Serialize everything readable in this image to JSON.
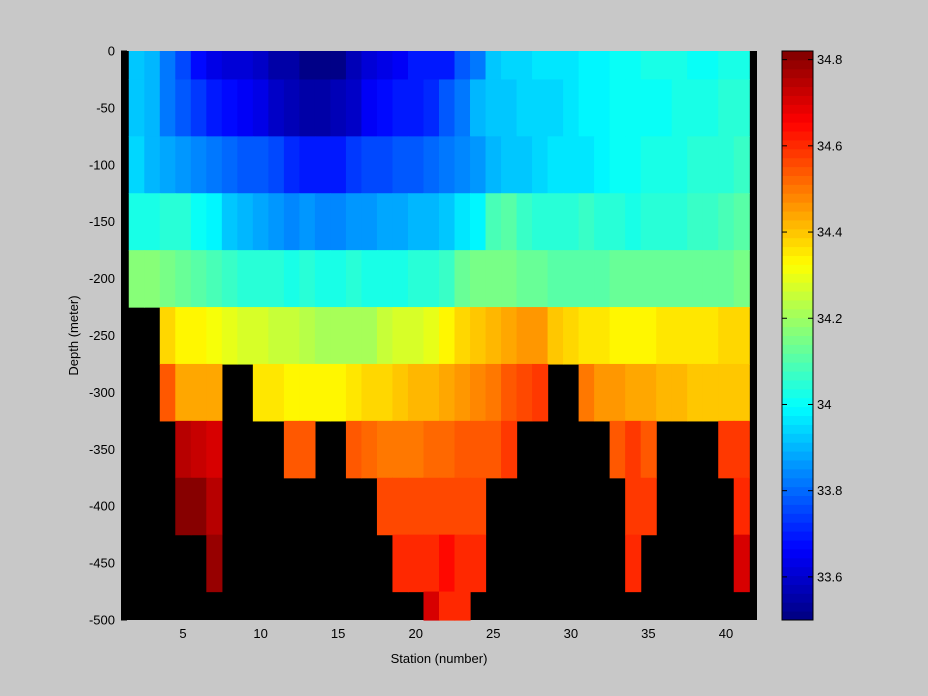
{
  "chart_data": {
    "type": "heatmap",
    "title": "",
    "xlabel": "Station (number)",
    "ylabel": "Depth (meter)",
    "xlim": [
      1,
      42
    ],
    "ylim": [
      -500,
      0
    ],
    "x_ticks": [
      5,
      10,
      15,
      20,
      25,
      30,
      35,
      40
    ],
    "y_ticks": [
      0,
      -50,
      -100,
      -150,
      -200,
      -250,
      -300,
      -350,
      -400,
      -450,
      -500
    ],
    "colorbar": {
      "colormap": "jet",
      "range": [
        33.5,
        34.82
      ],
      "ticks": [
        34.8,
        34.6,
        34.4,
        34.2,
        34,
        33.8,
        33.6
      ]
    },
    "background_color": "#000000",
    "station_range": [
      2,
      41
    ],
    "depth_bin_centers": [
      -12.5,
      -50,
      -100,
      -150,
      -200,
      -250,
      -300,
      -350,
      -400,
      -450,
      -500
    ],
    "depth_bin_edges": [
      0,
      -25,
      -75,
      -125,
      -175,
      -225,
      -275,
      -325,
      -375,
      -425,
      -475,
      -500
    ],
    "salinity_rows": [
      [
        33.92,
        33.9,
        33.83,
        33.75,
        33.68,
        33.63,
        33.62,
        33.62,
        33.6,
        33.55,
        33.55,
        33.52,
        33.52,
        33.52,
        33.57,
        33.62,
        33.63,
        33.66,
        33.69,
        33.69,
        33.7,
        33.78,
        33.83,
        33.92,
        33.95,
        33.95,
        33.96,
        33.97,
        33.97,
        33.98,
        33.99,
        34,
        34.01,
        34.02,
        34.03,
        34.02,
        34.01,
        34.01,
        34.02,
        34.03
      ],
      [
        33.93,
        33.9,
        33.83,
        33.78,
        33.73,
        33.7,
        33.68,
        33.66,
        33.63,
        33.6,
        33.58,
        33.56,
        33.56,
        33.57,
        33.6,
        33.65,
        33.67,
        33.7,
        33.7,
        33.72,
        33.78,
        33.83,
        33.9,
        33.92,
        33.92,
        33.94,
        33.95,
        33.95,
        33.96,
        33.98,
        33.99,
        34,
        34.01,
        34.01,
        34.01,
        34.02,
        34.03,
        34.03,
        34.04,
        34.04
      ],
      [
        33.95,
        33.9,
        33.88,
        33.86,
        33.84,
        33.82,
        33.8,
        33.78,
        33.77,
        33.75,
        33.72,
        33.7,
        33.7,
        33.7,
        33.73,
        33.75,
        33.76,
        33.77,
        33.78,
        33.8,
        33.82,
        33.85,
        33.87,
        33.9,
        33.92,
        33.93,
        33.95,
        33.96,
        33.96,
        33.97,
        33.98,
        34,
        34,
        34.02,
        34.03,
        34.03,
        34.04,
        34.05,
        34.05,
        34.06
      ],
      [
        34.02,
        34.03,
        34.05,
        34.04,
        34,
        33.98,
        33.92,
        33.9,
        33.88,
        33.86,
        33.85,
        33.87,
        33.85,
        33.85,
        33.86,
        33.87,
        33.88,
        33.88,
        33.9,
        33.91,
        33.93,
        33.96,
        33.98,
        34.08,
        34.1,
        34.06,
        34.05,
        34.04,
        34.05,
        34.06,
        34.05,
        34.04,
        34.03,
        34.05,
        34.04,
        34.05,
        34.06,
        34.07,
        34.08,
        34.1
      ],
      [
        34.18,
        34.18,
        34.14,
        34.12,
        34.1,
        34.08,
        34.06,
        34.04,
        34.04,
        34.04,
        34.03,
        34.04,
        34.03,
        34.03,
        34.04,
        34.03,
        34.02,
        34.03,
        34.04,
        34.05,
        34.07,
        34.12,
        34.14,
        34.16,
        34.14,
        34.13,
        34.12,
        34.1,
        34.1,
        34.1,
        34.11,
        34.12,
        34.12,
        34.13,
        34.13,
        34.13,
        34.12,
        34.12,
        34.13,
        34.14
      ],
      [
        null,
        null,
        34.38,
        34.34,
        34.34,
        34.32,
        34.3,
        34.28,
        34.28,
        34.26,
        34.25,
        34.23,
        34.22,
        34.22,
        34.22,
        34.22,
        34.25,
        34.27,
        34.28,
        34.3,
        34.33,
        34.38,
        34.4,
        34.42,
        34.44,
        34.45,
        34.46,
        34.4,
        34.38,
        34.36,
        34.35,
        34.34,
        34.33,
        34.34,
        34.35,
        34.35,
        34.35,
        34.36,
        34.37,
        34.37
      ],
      [
        null,
        null,
        34.55,
        34.44,
        34.44,
        34.44,
        null,
        null,
        34.36,
        34.36,
        34.34,
        34.34,
        34.33,
        34.34,
        34.36,
        34.37,
        34.38,
        34.4,
        34.41,
        34.42,
        34.44,
        34.46,
        34.48,
        34.5,
        34.55,
        34.57,
        34.58,
        null,
        null,
        34.5,
        34.46,
        34.45,
        34.44,
        34.44,
        34.42,
        34.42,
        34.4,
        34.4,
        34.4,
        34.4
      ],
      [
        null,
        null,
        null,
        34.75,
        34.72,
        34.7,
        null,
        null,
        null,
        null,
        34.55,
        34.55,
        null,
        null,
        34.55,
        34.52,
        34.5,
        34.5,
        34.5,
        34.52,
        34.52,
        34.54,
        34.55,
        34.55,
        34.58,
        null,
        null,
        null,
        null,
        null,
        null,
        34.55,
        34.58,
        34.55,
        null,
        null,
        null,
        null,
        34.58,
        34.58
      ],
      [
        null,
        null,
        null,
        34.8,
        34.8,
        34.75,
        null,
        null,
        null,
        null,
        null,
        null,
        null,
        null,
        null,
        null,
        34.57,
        34.57,
        34.57,
        34.57,
        34.57,
        34.57,
        34.57,
        null,
        null,
        null,
        null,
        null,
        null,
        null,
        null,
        null,
        34.58,
        34.58,
        null,
        null,
        null,
        null,
        null,
        34.6
      ],
      [
        null,
        null,
        null,
        null,
        null,
        34.78,
        null,
        null,
        null,
        null,
        null,
        null,
        null,
        null,
        null,
        null,
        null,
        34.6,
        34.6,
        34.6,
        34.65,
        34.6,
        34.6,
        null,
        null,
        null,
        null,
        null,
        null,
        null,
        null,
        null,
        34.6,
        null,
        null,
        null,
        null,
        null,
        null,
        34.7
      ],
      [
        null,
        null,
        null,
        null,
        null,
        null,
        null,
        null,
        null,
        null,
        null,
        null,
        null,
        null,
        null,
        null,
        null,
        null,
        null,
        34.7,
        34.6,
        34.6,
        null,
        null,
        null,
        null,
        null,
        null,
        null,
        null,
        null,
        null,
        null,
        null,
        null,
        null,
        null,
        null,
        null,
        null
      ]
    ]
  }
}
